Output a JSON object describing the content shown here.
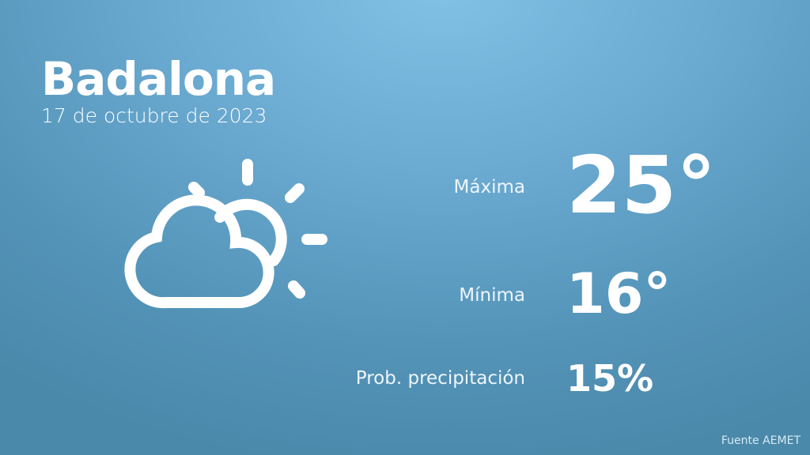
{
  "header": {
    "city": "Badalona",
    "date": "17 de octubre de 2023"
  },
  "weather_icon": "partly-cloudy-icon",
  "stats": [
    {
      "label": "Máxima",
      "value": "25°"
    },
    {
      "label": "Mínima",
      "value": "16°"
    },
    {
      "label": "Prob. precipitación",
      "value": "15%"
    }
  ],
  "footer": {
    "source": "Fuente AEMET"
  },
  "colors": {
    "bg_top": "#82c2e6",
    "bg_bottom": "#4b89ab",
    "text": "#ffffff"
  }
}
